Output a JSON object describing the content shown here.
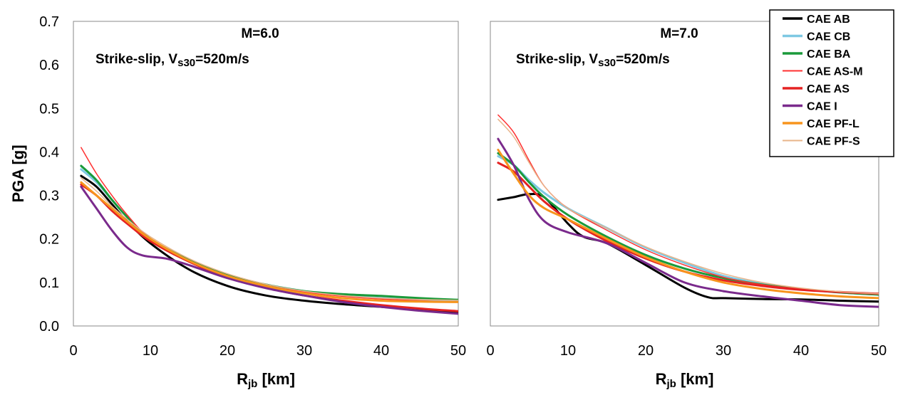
{
  "chart_data": [
    {
      "type": "line",
      "panel": "M=6.0",
      "title": "M=6.0",
      "annotation": {
        "prefix": "Strike-slip, V",
        "sub": "s30",
        "suffix": "=520m/s"
      },
      "xlabel": {
        "main": "R",
        "sub": "jb",
        "suffix": " [km]"
      },
      "ylabel": "PGA [g]",
      "xlim": [
        0,
        50
      ],
      "ylim": [
        0,
        0.7
      ],
      "xticks": [
        "0",
        "10",
        "20",
        "30",
        "40",
        "50"
      ],
      "yticks": [
        "0.0",
        "0.1",
        "0.2",
        "0.3",
        "0.4",
        "0.5",
        "0.6",
        "0.7"
      ],
      "grid": false,
      "series": [
        {
          "name": "CAE AB",
          "color": "#000000",
          "width": 3,
          "points": [
            [
              1,
              0.345
            ],
            [
              3,
              0.32
            ],
            [
              5,
              0.28
            ],
            [
              7,
              0.24
            ],
            [
              10,
              0.19
            ],
            [
              15,
              0.13
            ],
            [
              20,
              0.092
            ],
            [
              25,
              0.07
            ],
            [
              30,
              0.058
            ],
            [
              35,
              0.05
            ],
            [
              40,
              0.044
            ],
            [
              45,
              0.038
            ],
            [
              50,
              0.032
            ]
          ]
        },
        {
          "name": "CAE CB",
          "color": "#7ec8e3",
          "width": 3,
          "points": [
            [
              1,
              0.36
            ],
            [
              3,
              0.33
            ],
            [
              5,
              0.29
            ],
            [
              7,
              0.25
            ],
            [
              10,
              0.2
            ],
            [
              15,
              0.15
            ],
            [
              20,
              0.115
            ],
            [
              25,
              0.095
            ],
            [
              30,
              0.08
            ],
            [
              35,
              0.07
            ],
            [
              40,
              0.064
            ],
            [
              45,
              0.06
            ],
            [
              50,
              0.057
            ]
          ]
        },
        {
          "name": "CAE BA",
          "color": "#1a9a3a",
          "width": 3,
          "points": [
            [
              1,
              0.368
            ],
            [
              3,
              0.335
            ],
            [
              5,
              0.29
            ],
            [
              7,
              0.25
            ],
            [
              10,
              0.2
            ],
            [
              15,
              0.152
            ],
            [
              20,
              0.117
            ],
            [
              25,
              0.095
            ],
            [
              30,
              0.08
            ],
            [
              35,
              0.073
            ],
            [
              40,
              0.069
            ],
            [
              45,
              0.064
            ],
            [
              50,
              0.06
            ]
          ]
        },
        {
          "name": "CAE AS-M",
          "color": "#ff3030",
          "width": 1.5,
          "points": [
            [
              1,
              0.41
            ],
            [
              3,
              0.35
            ],
            [
              5,
              0.3
            ],
            [
              7,
              0.255
            ],
            [
              10,
              0.2
            ],
            [
              15,
              0.15
            ],
            [
              20,
              0.115
            ],
            [
              25,
              0.093
            ],
            [
              30,
              0.078
            ],
            [
              35,
              0.068
            ],
            [
              40,
              0.062
            ],
            [
              45,
              0.058
            ],
            [
              50,
              0.055
            ]
          ]
        },
        {
          "name": "CAE AS",
          "color": "#e52222",
          "width": 3,
          "points": [
            [
              1,
              0.325
            ],
            [
              3,
              0.3
            ],
            [
              5,
              0.265
            ],
            [
              7,
              0.235
            ],
            [
              10,
              0.195
            ],
            [
              15,
              0.148
            ],
            [
              20,
              0.112
            ],
            [
              25,
              0.088
            ],
            [
              30,
              0.07
            ],
            [
              35,
              0.058
            ],
            [
              40,
              0.048
            ],
            [
              45,
              0.04
            ],
            [
              50,
              0.034
            ]
          ]
        },
        {
          "name": "CAE I",
          "color": "#7a2a8c",
          "width": 3,
          "points": [
            [
              1,
              0.32
            ],
            [
              3,
              0.27
            ],
            [
              5,
              0.22
            ],
            [
              7,
              0.18
            ],
            [
              9,
              0.162
            ],
            [
              12,
              0.155
            ],
            [
              15,
              0.14
            ],
            [
              20,
              0.11
            ],
            [
              25,
              0.087
            ],
            [
              30,
              0.07
            ],
            [
              35,
              0.055
            ],
            [
              40,
              0.044
            ],
            [
              45,
              0.035
            ],
            [
              50,
              0.028
            ]
          ]
        },
        {
          "name": "CAE PF-L",
          "color": "#f7941d",
          "width": 3,
          "points": [
            [
              1,
              0.33
            ],
            [
              3,
              0.3
            ],
            [
              5,
              0.27
            ],
            [
              7,
              0.24
            ],
            [
              10,
              0.2
            ],
            [
              15,
              0.15
            ],
            [
              20,
              0.115
            ],
            [
              25,
              0.092
            ],
            [
              30,
              0.075
            ],
            [
              35,
              0.064
            ],
            [
              40,
              0.058
            ],
            [
              45,
              0.056
            ],
            [
              50,
              0.055
            ]
          ]
        },
        {
          "name": "CAE PF-S",
          "color": "#e8b48a",
          "width": 1.5,
          "points": [
            [
              1,
              0.34
            ],
            [
              3,
              0.31
            ],
            [
              5,
              0.275
            ],
            [
              7,
              0.245
            ],
            [
              10,
              0.205
            ],
            [
              15,
              0.155
            ],
            [
              20,
              0.12
            ],
            [
              25,
              0.096
            ],
            [
              30,
              0.08
            ],
            [
              35,
              0.07
            ],
            [
              40,
              0.064
            ],
            [
              45,
              0.061
            ],
            [
              50,
              0.059
            ]
          ]
        }
      ]
    },
    {
      "type": "line",
      "panel": "M=7.0",
      "title": "M=7.0",
      "annotation": {
        "prefix": "Strike-slip, V",
        "sub": "s30",
        "suffix": "=520m/s"
      },
      "xlabel": {
        "main": "R",
        "sub": "jb",
        "suffix": " [km]"
      },
      "ylabel": "",
      "xlim": [
        0,
        50
      ],
      "ylim": [
        0,
        0.7
      ],
      "xticks": [
        "0",
        "10",
        "20",
        "30",
        "40",
        "50"
      ],
      "yticks": [],
      "grid": false,
      "series": [
        {
          "name": "CAE AB",
          "color": "#000000",
          "width": 3,
          "points": [
            [
              1,
              0.29
            ],
            [
              3,
              0.296
            ],
            [
              5,
              0.303
            ],
            [
              7,
              0.295
            ],
            [
              10,
              0.235
            ],
            [
              12,
              0.205
            ],
            [
              15,
              0.19
            ],
            [
              20,
              0.14
            ],
            [
              25,
              0.088
            ],
            [
              28,
              0.066
            ],
            [
              30,
              0.064
            ],
            [
              35,
              0.062
            ],
            [
              40,
              0.061
            ],
            [
              45,
              0.058
            ],
            [
              50,
              0.056
            ]
          ]
        },
        {
          "name": "CAE CB",
          "color": "#7ec8e3",
          "width": 3,
          "points": [
            [
              1,
              0.39
            ],
            [
              3,
              0.37
            ],
            [
              5,
              0.335
            ],
            [
              7,
              0.305
            ],
            [
              10,
              0.27
            ],
            [
              15,
              0.225
            ],
            [
              20,
              0.18
            ],
            [
              25,
              0.145
            ],
            [
              30,
              0.115
            ],
            [
              35,
              0.097
            ],
            [
              40,
              0.085
            ],
            [
              45,
              0.077
            ],
            [
              50,
              0.072
            ]
          ]
        },
        {
          "name": "CAE BA",
          "color": "#1a9a3a",
          "width": 3,
          "points": [
            [
              1,
              0.397
            ],
            [
              3,
              0.37
            ],
            [
              5,
              0.33
            ],
            [
              7,
              0.295
            ],
            [
              10,
              0.255
            ],
            [
              15,
              0.205
            ],
            [
              20,
              0.163
            ],
            [
              25,
              0.132
            ],
            [
              30,
              0.11
            ],
            [
              35,
              0.095
            ],
            [
              40,
              0.085
            ],
            [
              45,
              0.077
            ],
            [
              50,
              0.072
            ]
          ]
        },
        {
          "name": "CAE AS-M",
          "color": "#ff3030",
          "width": 1.5,
          "points": [
            [
              1,
              0.485
            ],
            [
              3,
              0.445
            ],
            [
              5,
              0.38
            ],
            [
              7,
              0.32
            ],
            [
              10,
              0.27
            ],
            [
              15,
              0.22
            ],
            [
              20,
              0.175
            ],
            [
              25,
              0.14
            ],
            [
              30,
              0.112
            ],
            [
              35,
              0.095
            ],
            [
              40,
              0.085
            ],
            [
              45,
              0.078
            ],
            [
              50,
              0.075
            ]
          ]
        },
        {
          "name": "CAE AS",
          "color": "#e52222",
          "width": 3,
          "points": [
            [
              1,
              0.375
            ],
            [
              3,
              0.355
            ],
            [
              5,
              0.32
            ],
            [
              7,
              0.285
            ],
            [
              10,
              0.245
            ],
            [
              15,
              0.195
            ],
            [
              20,
              0.155
            ],
            [
              25,
              0.125
            ],
            [
              30,
              0.105
            ],
            [
              35,
              0.092
            ],
            [
              40,
              0.083
            ],
            [
              45,
              0.078
            ],
            [
              50,
              0.074
            ]
          ]
        },
        {
          "name": "CAE I",
          "color": "#7a2a8c",
          "width": 3,
          "points": [
            [
              1,
              0.43
            ],
            [
              3,
              0.37
            ],
            [
              5,
              0.29
            ],
            [
              7,
              0.24
            ],
            [
              10,
              0.215
            ],
            [
              15,
              0.19
            ],
            [
              20,
              0.145
            ],
            [
              25,
              0.1
            ],
            [
              30,
              0.08
            ],
            [
              35,
              0.068
            ],
            [
              40,
              0.058
            ],
            [
              45,
              0.048
            ],
            [
              50,
              0.044
            ]
          ]
        },
        {
          "name": "CAE PF-L",
          "color": "#f7941d",
          "width": 3,
          "points": [
            [
              1,
              0.405
            ],
            [
              3,
              0.35
            ],
            [
              5,
              0.3
            ],
            [
              7,
              0.27
            ],
            [
              10,
              0.245
            ],
            [
              15,
              0.2
            ],
            [
              20,
              0.158
            ],
            [
              25,
              0.125
            ],
            [
              30,
              0.1
            ],
            [
              35,
              0.085
            ],
            [
              40,
              0.075
            ],
            [
              45,
              0.068
            ],
            [
              50,
              0.064
            ]
          ]
        },
        {
          "name": "CAE PF-S",
          "color": "#e8b48a",
          "width": 1.5,
          "points": [
            [
              1,
              0.475
            ],
            [
              3,
              0.435
            ],
            [
              5,
              0.375
            ],
            [
              7,
              0.32
            ],
            [
              10,
              0.27
            ],
            [
              15,
              0.225
            ],
            [
              20,
              0.182
            ],
            [
              25,
              0.148
            ],
            [
              30,
              0.12
            ],
            [
              35,
              0.1
            ],
            [
              40,
              0.087
            ],
            [
              45,
              0.079
            ],
            [
              50,
              0.074
            ]
          ]
        }
      ]
    }
  ],
  "legend": {
    "placement": "top-right",
    "entries": [
      {
        "label": "CAE AB",
        "color": "#000000",
        "width": 3
      },
      {
        "label": "CAE CB",
        "color": "#7ec8e3",
        "width": 3
      },
      {
        "label": "CAE BA",
        "color": "#1a9a3a",
        "width": 3
      },
      {
        "label": "CAE AS-M",
        "color": "#ff3030",
        "width": 1.5
      },
      {
        "label": "CAE AS",
        "color": "#e52222",
        "width": 3
      },
      {
        "label": "CAE I",
        "color": "#7a2a8c",
        "width": 3
      },
      {
        "label": "CAE PF-L",
        "color": "#f7941d",
        "width": 3
      },
      {
        "label": "CAE PF-S",
        "color": "#e8b48a",
        "width": 1.5
      }
    ]
  }
}
